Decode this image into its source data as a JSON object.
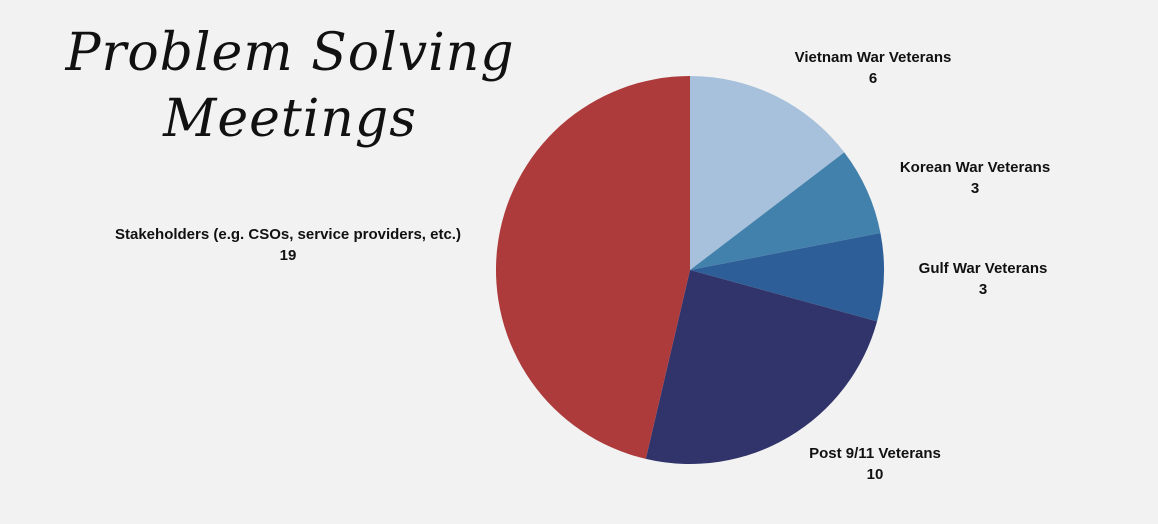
{
  "chart_data": {
    "type": "pie",
    "title_lines": [
      "Problem Solving",
      "Meetings"
    ],
    "slices": [
      {
        "label": "Vietnam War Veterans",
        "value": 6,
        "color": "#a7c1dc"
      },
      {
        "label": "Korean War Veterans",
        "value": 3,
        "color": "#4281ab"
      },
      {
        "label": "Gulf War Veterans",
        "value": 3,
        "color": "#2e5e97"
      },
      {
        "label": "Post 9/11 Veterans",
        "value": 10,
        "color": "#30346a"
      },
      {
        "label": "Stakeholders (e.g. CSOs, service providers, etc.)",
        "value": 19,
        "color": "#ae3b3c"
      }
    ],
    "start_angle": "12 o'clock",
    "direction": "clockwise",
    "legend": "none",
    "data_labels": "category name and value outside each slice"
  }
}
